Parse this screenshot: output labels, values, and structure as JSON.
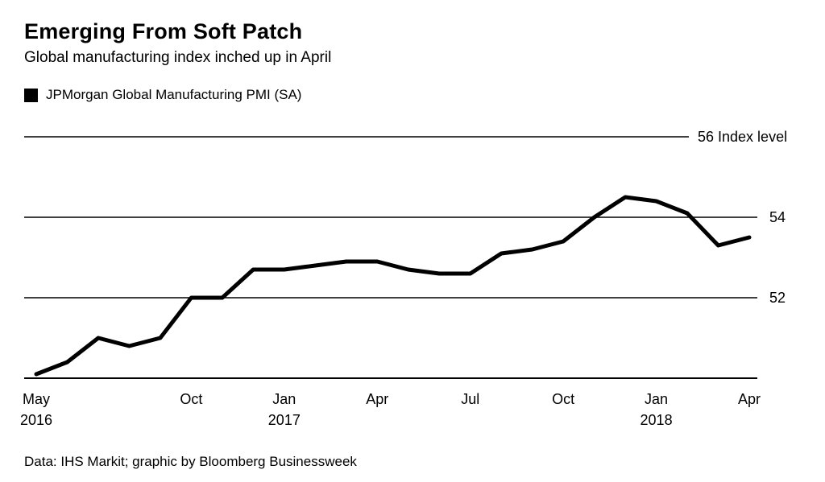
{
  "footer": {
    "credit": "Data: IHS Markit; graphic by Bloomberg Businessweek"
  },
  "colors": {
    "background": "#ffffff",
    "text": "#000000",
    "line": "#000000",
    "grid": "#000000"
  },
  "chart_data": {
    "type": "line",
    "title": "Emerging From Soft Patch",
    "subtitle": "Global manufacturing index inched up in April",
    "legend_position": "top-left",
    "grid": "horizontal",
    "ylim": [
      50,
      56
    ],
    "x": [
      "May 2016",
      "Jun 2016",
      "Jul 2016",
      "Aug 2016",
      "Sep 2016",
      "Oct 2016",
      "Nov 2016",
      "Dec 2016",
      "Jan 2017",
      "Feb 2017",
      "Mar 2017",
      "Apr 2017",
      "May 2017",
      "Jun 2017",
      "Jul 2017",
      "Aug 2017",
      "Sep 2017",
      "Oct 2017",
      "Nov 2017",
      "Dec 2017",
      "Jan 2018",
      "Feb 2018",
      "Mar 2018",
      "Apr 2018"
    ],
    "series": [
      {
        "name": "JPMorgan Global Manufacturing PMI (SA)",
        "color": "#000000",
        "values": [
          50.1,
          50.4,
          51.0,
          50.8,
          51.0,
          52.0,
          52.0,
          52.7,
          52.7,
          52.8,
          52.9,
          52.9,
          52.7,
          52.6,
          52.6,
          53.1,
          53.2,
          53.4,
          54.0,
          54.5,
          54.4,
          54.1,
          53.3,
          53.5
        ]
      }
    ],
    "x_ticks": [
      {
        "index": 0,
        "label": "May",
        "year": "2016"
      },
      {
        "index": 5,
        "label": "Oct"
      },
      {
        "index": 8,
        "label": "Jan",
        "year": "2017"
      },
      {
        "index": 11,
        "label": "Apr"
      },
      {
        "index": 14,
        "label": "Jul"
      },
      {
        "index": 17,
        "label": "Oct"
      },
      {
        "index": 20,
        "label": "Jan",
        "year": "2018"
      },
      {
        "index": 23,
        "label": "Apr"
      }
    ],
    "y_ticks": [
      {
        "value": 56,
        "label": "56 Index level"
      },
      {
        "value": 54,
        "label": "54"
      },
      {
        "value": 52,
        "label": "52"
      }
    ]
  }
}
